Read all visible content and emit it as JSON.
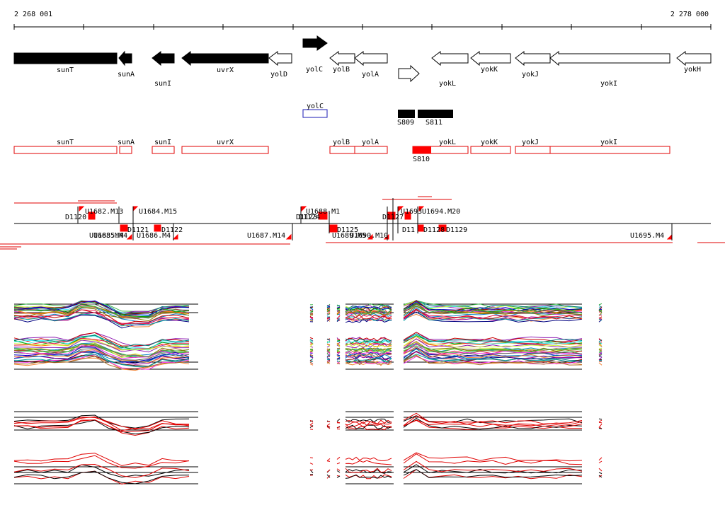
{
  "coords": {
    "start": "2 268 001",
    "end": "2 278 000"
  },
  "genes": [
    {
      "name": "sunT",
      "dir": "L",
      "filled": true
    },
    {
      "name": "sunA",
      "dir": "L",
      "filled": true
    },
    {
      "name": "sunI",
      "dir": "L",
      "filled": true
    },
    {
      "name": "uvrX",
      "dir": "L",
      "filled": true
    },
    {
      "name": "yolD",
      "dir": "L",
      "filled": false
    },
    {
      "name": "yolC",
      "dir": "R",
      "filled": true
    },
    {
      "name": "yolB",
      "dir": "L",
      "filled": false
    },
    {
      "name": "yolA",
      "dir": "L",
      "filled": false
    },
    {
      "name": "",
      "dir": "R",
      "filled": false
    },
    {
      "name": "yokL",
      "dir": "L",
      "filled": false
    },
    {
      "name": "yokK",
      "dir": "L",
      "filled": false
    },
    {
      "name": "yokJ",
      "dir": "L",
      "filled": false
    },
    {
      "name": "yokI",
      "dir": "L",
      "filled": false
    },
    {
      "name": "yokH",
      "dir": "L",
      "filled": false
    }
  ],
  "highlight_gene": "yolC",
  "black_features": [
    "S809",
    "S811"
  ],
  "red_features": [
    "sunT",
    "sunA",
    "sunI",
    "uvrX",
    "yolB",
    "yolA",
    "yokL",
    "yokK",
    "yokJ",
    "yokI"
  ],
  "red_feature_solid": "S810",
  "probe_labels": [
    "D1120",
    "U1682.M13",
    "U1684.M15",
    "D1122",
    "D1121",
    "U1686.M4",
    "U1683.M4",
    "U1685.M4",
    "U1687.M14",
    "U1688.M1",
    "D1123",
    "D1124",
    "D1125",
    "U1689.M5",
    "U1690.M10",
    "D1127",
    "U1693",
    "U1694.M20",
    "D1128",
    "D1129",
    "U1695.M4"
  ],
  "colors": {
    "gene": "#000000",
    "feature": "#ff0000",
    "highlight": "#1a1ab4"
  }
}
